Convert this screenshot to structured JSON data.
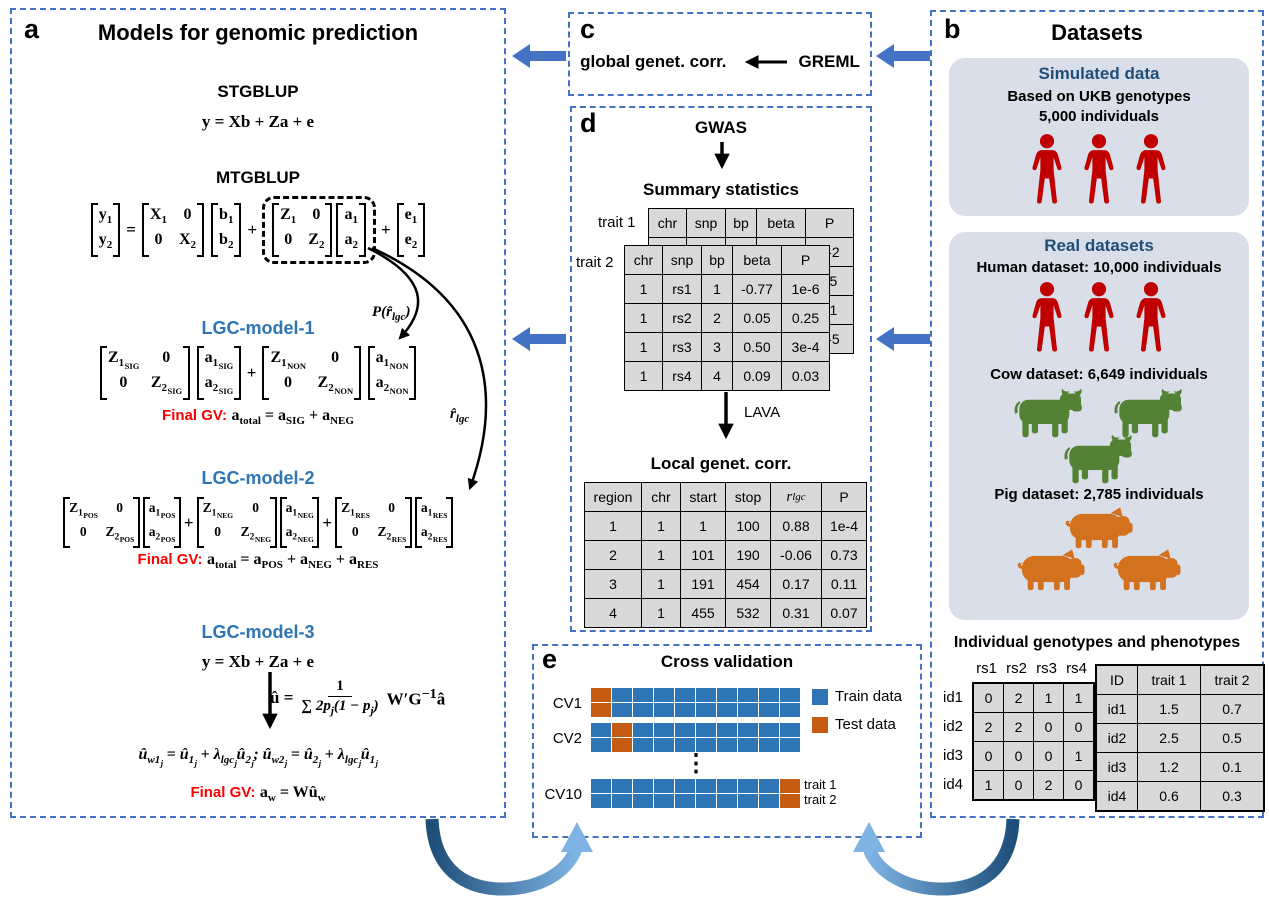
{
  "colors": {
    "panel_border": "#4472C4",
    "accent_arrow": "#4472C4",
    "model_header_blue": "#2E75B6",
    "final_gv_red": "#FF0000",
    "dataset_title_navy": "#1F4E79",
    "person_red": "#C00000",
    "cow_green": "#548235",
    "pig_orange": "#D2711E",
    "box_bg": "#D9DEE8",
    "table_cell_bg": "#D9D9D9",
    "loop_arrow_dark": "#1F4E79",
    "loop_arrow_light": "#7EB3E3"
  },
  "symbols": {
    "plus": "+",
    "equals": "=",
    "dots": "⋮"
  },
  "panel_a": {
    "label": "a",
    "title": "Models for genomic prediction",
    "stgblup": {
      "title": "STGBLUP",
      "eq": "y = Xb + Za + e"
    },
    "mtgblup": {
      "title": "MTGBLUP",
      "y": [
        "y_{1}",
        "y_{2}"
      ],
      "X": [
        "X_{1}",
        "0",
        "0",
        "X_{2}"
      ],
      "b": [
        "b_{1}",
        "b_{2}"
      ],
      "Z": [
        "Z_{1}",
        "0",
        "0",
        "Z_{2}"
      ],
      "a": [
        "a_{1}",
        "a_{2}"
      ],
      "e": [
        "e_{1}",
        "e_{2}"
      ]
    },
    "annotations": {
      "p_rlgc": "P(r̂_{lgc})",
      "rlgc": "r̂_{lgc}"
    },
    "lgc1": {
      "title": "LGC-model-1",
      "Zsig": [
        "Z_{1}__{SIG}",
        "0",
        "0",
        "Z_{2}__{SIG}"
      ],
      "asig": [
        "a_{1}__{SIG}",
        "a_{2}__{SIG}"
      ],
      "Znon": [
        "Z_{1}__{NON}",
        "0",
        "0",
        "Z_{2}__{NON}"
      ],
      "anon": [
        "a_{1}__{NON}",
        "a_{2}__{NON}"
      ],
      "final_label": "Final GV:",
      "final_eq": "a_{total} = a_{SIG} + a_{NEG}"
    },
    "lgc2": {
      "title": "LGC-model-2",
      "Zpos": [
        "Z_{1}__{POS}",
        "0",
        "0",
        "Z_{2}__{POS}"
      ],
      "apos": [
        "a_{1}__{POS}",
        "a_{2}__{POS}"
      ],
      "Zneg": [
        "Z_{1}__{NEG}",
        "0",
        "0",
        "Z_{2}__{NEG}"
      ],
      "aneg": [
        "a_{1}__{NEG}",
        "a_{2}__{NEG}"
      ],
      "Zres": [
        "Z_{1}__{RES}",
        "0",
        "0",
        "Z_{2}__{RES}"
      ],
      "ares": [
        "a_{1}__{RES}",
        "a_{2}__{RES}"
      ],
      "final_label": "Final GV:",
      "final_eq": "a_{total} = a_{POS} + a_{NEG} + a_{RES}"
    },
    "lgc3": {
      "title": "LGC-model-3",
      "eq1": "y = Xb + Za + e",
      "uhat_lhs": "û =",
      "frac_num": "1",
      "frac_den": "∑ 2p_{j}(1 − p_{j})",
      "uhat_rhs": "W′G^{−1}â",
      "eq3": "û_{w1}__{j} = û_{1}__{j} + λ_{lgc}__{j}û_{2}__{j};  û_{w2}__{j} = û_{2}__{j} + λ_{lgc}__{j}û_{1}__{j}",
      "final_label": "Final GV:",
      "final_eq": "a_{w} = Wû_{w}"
    }
  },
  "panel_c": {
    "label": "c",
    "text": "global genet. corr.",
    "method": "GREML"
  },
  "panel_d": {
    "label": "d",
    "gwas": "GWAS",
    "summary_title": "Summary statistics",
    "trait1_label": "trait 1",
    "trait2_label": "trait 2",
    "headers": [
      "chr",
      "snp",
      "bp",
      "beta",
      "P"
    ],
    "trait2_rows": [
      [
        "1",
        "rs1",
        "1",
        "-0.77",
        "1e-6"
      ],
      [
        "1",
        "rs2",
        "2",
        "0.05",
        "0.25"
      ],
      [
        "1",
        "rs3",
        "3",
        "0.50",
        "3e-4"
      ],
      [
        "1",
        "rs4",
        "4",
        "0.09",
        "0.03"
      ]
    ],
    "trait1_back_rows": [
      [
        "",
        "",
        "",
        "",
        "e-2"
      ],
      [
        "",
        "",
        "",
        "",
        "45"
      ],
      [
        "",
        "",
        "",
        "",
        "01"
      ],
      [
        "",
        "",
        "",
        "",
        "e-5"
      ]
    ],
    "lava": "LAVA",
    "local_title": "Local genet. corr.",
    "local_headers": [
      "region",
      "chr",
      "start",
      "stop",
      "r_{lgc}",
      "P"
    ],
    "local_rows": [
      [
        "1",
        "1",
        "1",
        "100",
        "0.88",
        "1e-4"
      ],
      [
        "2",
        "1",
        "101",
        "190",
        "-0.06",
        "0.73"
      ],
      [
        "3",
        "1",
        "191",
        "454",
        "0.17",
        "0.11"
      ],
      [
        "4",
        "1",
        "455",
        "532",
        "0.31",
        "0.07"
      ]
    ]
  },
  "panel_b": {
    "label": "b",
    "title": "Datasets",
    "simulated": {
      "title": "Simulated data",
      "line1": "Based on UKB genotypes",
      "line2": "5,000 individuals"
    },
    "real": {
      "title": "Real datasets",
      "human": "Human dataset: 10,000 individuals",
      "cow": "Cow dataset:  6,649 individuals",
      "pig": "Pig dataset:  2,785 individuals"
    },
    "geno_pheno": {
      "title": "Individual genotypes and phenotypes",
      "geno_cols": [
        "rs1",
        "rs2",
        "rs3",
        "rs4"
      ],
      "geno_row_labels": [
        "id1",
        "id2",
        "id3",
        "id4"
      ],
      "geno_rows": [
        [
          "0",
          "2",
          "1",
          "1"
        ],
        [
          "2",
          "2",
          "0",
          "0"
        ],
        [
          "0",
          "0",
          "0",
          "1"
        ],
        [
          "1",
          "0",
          "2",
          "0"
        ]
      ],
      "pheno_headers": [
        "ID",
        "trait 1",
        "trait 2"
      ],
      "pheno_rows": [
        [
          "id1",
          "1.5",
          "0.7"
        ],
        [
          "id2",
          "2.5",
          "0.5"
        ],
        [
          "id3",
          "1.2",
          "0.1"
        ],
        [
          "id4",
          "0.6",
          "0.3"
        ]
      ]
    }
  },
  "panel_e": {
    "label": "e",
    "title": "Cross validation",
    "n_segments": 10,
    "cv": [
      {
        "label": "CV1",
        "test_index": 0
      },
      {
        "label": "CV2",
        "test_index": 1
      },
      {
        "label": "CV10",
        "test_index": 9
      }
    ],
    "legend": [
      {
        "label": "Train data",
        "color": "#2E75B6"
      },
      {
        "label": "Test data",
        "color": "#C55A11"
      }
    ],
    "trait_labels": [
      "trait 1",
      "trait 2"
    ]
  }
}
